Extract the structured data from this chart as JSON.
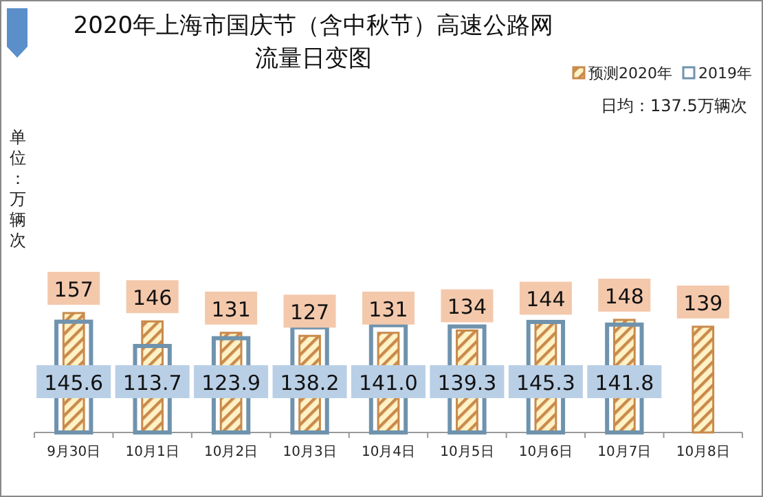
{
  "chart_data": {
    "type": "bar",
    "title": "2020年上海市国庆节（含中秋节）高速公路网流量日变图",
    "ylabel": "单位：万辆次",
    "annotations": [
      "日均：137.5万辆次"
    ],
    "categories": [
      "9月30日",
      "10月1日",
      "10月2日",
      "10月3日",
      "10月4日",
      "10月5日",
      "10月6日",
      "10月7日",
      "10月8日"
    ],
    "series": [
      {
        "name": "预测2020年",
        "color": "#c98a4b",
        "values": [
          157,
          146,
          131,
          127,
          131,
          134,
          144,
          148,
          139
        ]
      },
      {
        "name": "2019年",
        "color": "#6f93ad",
        "values": [
          145.6,
          113.7,
          123.9,
          138.2,
          141.0,
          139.3,
          145.3,
          141.8,
          null
        ],
        "value_labels": [
          "145.6",
          "113.7",
          "123.9",
          "138.2",
          "141.0",
          "139.3",
          "145.3",
          "141.8",
          null
        ]
      }
    ],
    "data_labels": true,
    "legend": "top right"
  }
}
